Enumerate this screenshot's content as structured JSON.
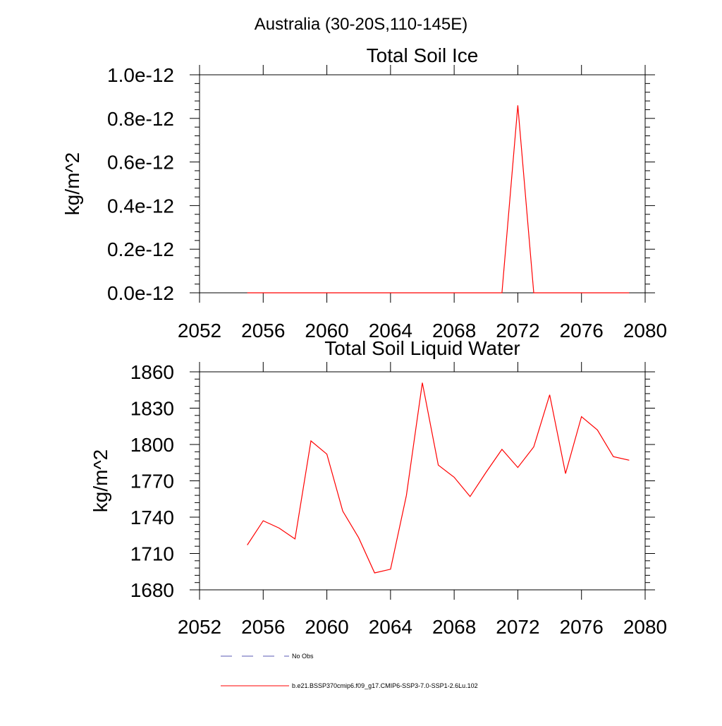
{
  "figure": {
    "title": "Australia (30-20S,110-145E)"
  },
  "legend": {
    "entries": [
      {
        "label": "No Obs",
        "color": "#5a5ab4",
        "style": "dashed"
      },
      {
        "label": "b.e21.BSSP370cmip6.f09_g17.CMIP6-SSP3-7.0-SSP1-2.6Lu.102",
        "color": "#ff0000",
        "style": "solid"
      }
    ]
  },
  "chart_data": [
    {
      "type": "line",
      "title": "Total Soil Ice",
      "xlabel": "",
      "ylabel": "kg/m^2",
      "xlim": [
        2052,
        2080
      ],
      "ylim": [
        0,
        1e-12
      ],
      "xticks": [
        2052,
        2056,
        2060,
        2064,
        2068,
        2072,
        2076,
        2080
      ],
      "yticks": [
        0,
        2e-13,
        4e-13,
        6e-13,
        8e-13,
        1e-12
      ],
      "yticklabels": [
        "0.0e-12",
        "0.2e-12",
        "0.4e-12",
        "0.6e-12",
        "0.8e-12",
        "1.0e-12"
      ],
      "series": [
        {
          "name": "b.e21.BSSP370cmip6.f09_g17.CMIP6-SSP3-7.0-SSP1-2.6Lu.102",
          "color": "#ff0000",
          "x": [
            2055,
            2056,
            2057,
            2058,
            2059,
            2060,
            2061,
            2062,
            2063,
            2064,
            2065,
            2066,
            2067,
            2068,
            2069,
            2070,
            2071,
            2072,
            2073,
            2074,
            2075,
            2076,
            2077,
            2078,
            2079
          ],
          "values": [
            0,
            0,
            0,
            0,
            0,
            0,
            0,
            0,
            0,
            0,
            0,
            0,
            0,
            0,
            0,
            0,
            0,
            8.6e-13,
            0,
            0,
            0,
            0,
            0,
            0,
            0
          ]
        }
      ]
    },
    {
      "type": "line",
      "title": "Total Soil Liquid Water",
      "xlabel": "",
      "ylabel": "kg/m^2",
      "xlim": [
        2052,
        2080
      ],
      "ylim": [
        1680,
        1860
      ],
      "xticks": [
        2052,
        2056,
        2060,
        2064,
        2068,
        2072,
        2076,
        2080
      ],
      "yticks": [
        1680,
        1710,
        1740,
        1770,
        1800,
        1830,
        1860
      ],
      "yticklabels": [
        "1680",
        "1710",
        "1740",
        "1770",
        "1800",
        "1830",
        "1860"
      ],
      "series": [
        {
          "name": "b.e21.BSSP370cmip6.f09_g17.CMIP6-SSP3-7.0-SSP1-2.6Lu.102",
          "color": "#ff0000",
          "x": [
            2055,
            2056,
            2057,
            2058,
            2059,
            2060,
            2061,
            2062,
            2063,
            2064,
            2065,
            2066,
            2067,
            2068,
            2069,
            2070,
            2071,
            2072,
            2073,
            2074,
            2075,
            2076,
            2077,
            2078,
            2079
          ],
          "values": [
            1717,
            1737,
            1731,
            1722,
            1803,
            1792,
            1745,
            1723,
            1694,
            1697,
            1758,
            1851,
            1783,
            1773,
            1757,
            1777,
            1796,
            1781,
            1798,
            1841,
            1776,
            1823,
            1812,
            1790,
            1787
          ]
        }
      ]
    }
  ]
}
